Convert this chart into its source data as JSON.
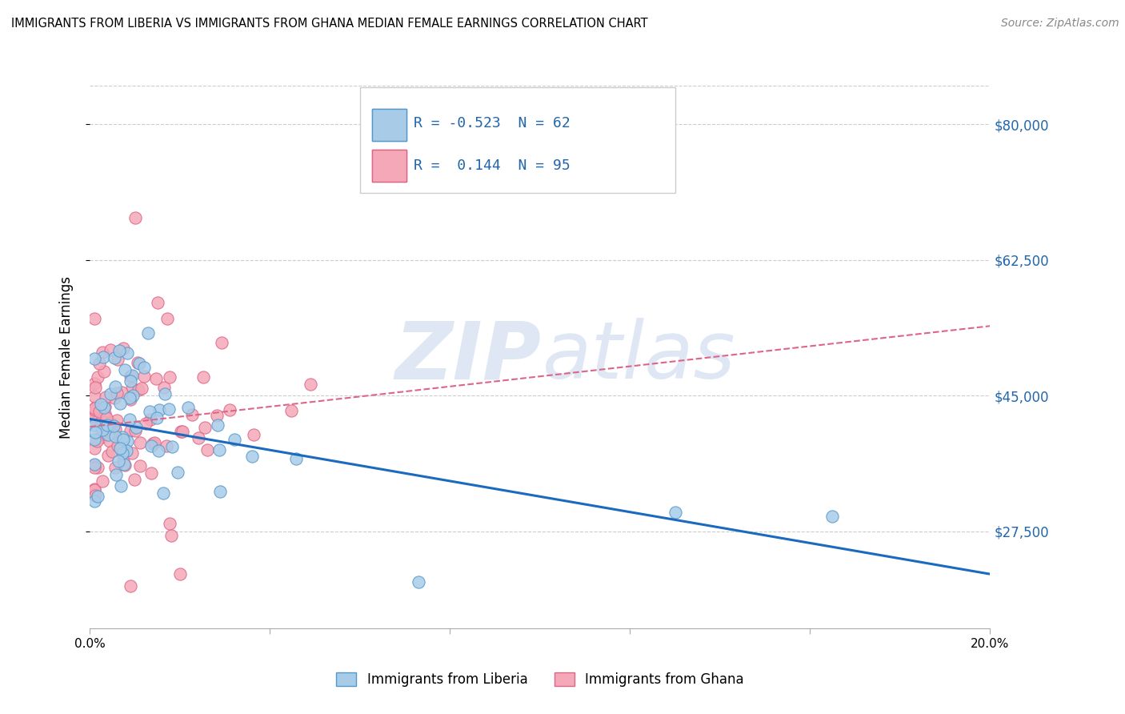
{
  "title": "IMMIGRANTS FROM LIBERIA VS IMMIGRANTS FROM GHANA MEDIAN FEMALE EARNINGS CORRELATION CHART",
  "source": "Source: ZipAtlas.com",
  "ylabel": "Median Female Earnings",
  "y_ticks": [
    27500,
    45000,
    62500,
    80000
  ],
  "y_tick_labels": [
    "$27,500",
    "$45,000",
    "$62,500",
    "$80,000"
  ],
  "x_min": 0.0,
  "x_max": 0.2,
  "y_min": 15000,
  "y_max": 85000,
  "liberia_color": "#a8cce8",
  "liberia_edge": "#5599cc",
  "ghana_color": "#f4a8b8",
  "ghana_edge": "#dd6688",
  "liberia_line_color": "#1a6bbf",
  "ghana_line_color": "#dd6688",
  "tick_color": "#2166ac",
  "background_color": "#ffffff",
  "grid_color": "#cccccc",
  "watermark_zip_color": "#c8d8ec",
  "watermark_atlas_color": "#c8d8ec"
}
